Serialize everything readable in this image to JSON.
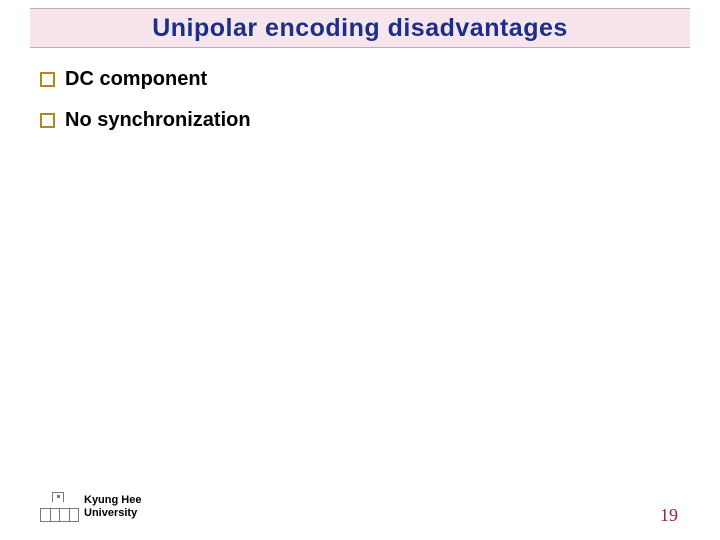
{
  "title": "Unipolar encoding disadvantages",
  "bullets": [
    {
      "text": "DC component"
    },
    {
      "text": "No synchronization"
    }
  ],
  "footer": {
    "line1": "Kyung Hee",
    "line2": "University"
  },
  "page_number": "19",
  "colors": {
    "title_bg": "#f7e5ee",
    "title_text": "#1a2e8a",
    "bullet_border": "#b0881e",
    "page_num": "#a02040"
  }
}
